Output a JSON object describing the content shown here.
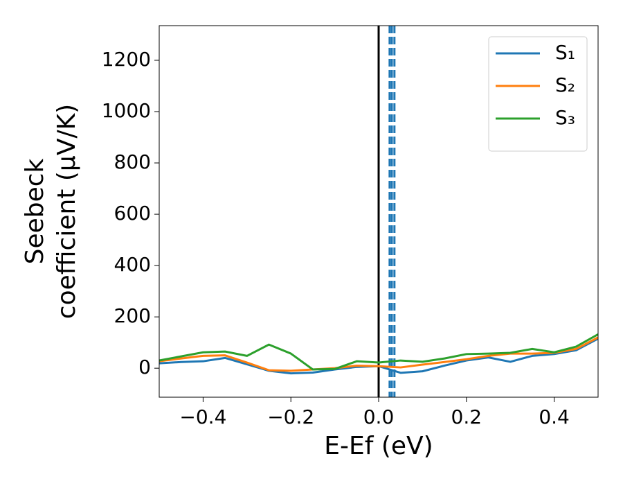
{
  "chart_data": {
    "type": "line",
    "xlabel": "E-Ef (eV)",
    "ylabel": [
      "Seebeck",
      "coefficient  (μV/K)"
    ],
    "x": [
      -0.5,
      -0.45,
      -0.4,
      -0.35,
      -0.3,
      -0.25,
      -0.2,
      -0.15,
      -0.1,
      -0.05,
      0,
      0.05,
      0.1,
      0.15,
      0.2,
      0.25,
      0.3,
      0.35,
      0.4,
      0.45,
      0.5
    ],
    "series": [
      {
        "name": "S₁",
        "color": "#1f77b4",
        "values": [
          19,
          24,
          27,
          40,
          15,
          -10,
          -20,
          -17,
          -5,
          5,
          8,
          -18,
          -12,
          10,
          30,
          42,
          25,
          48,
          55,
          70,
          115
        ]
      },
      {
        "name": "S₂",
        "color": "#ff7f0e",
        "values": [
          27,
          38,
          48,
          50,
          22,
          -8,
          -10,
          -5,
          0,
          10,
          8,
          3,
          14,
          24,
          35,
          48,
          57,
          57,
          60,
          75,
          120
        ]
      },
      {
        "name": "S₃",
        "color": "#2ca02c",
        "values": [
          30,
          46,
          62,
          65,
          48,
          92,
          57,
          -5,
          -3,
          27,
          22,
          30,
          25,
          38,
          55,
          57,
          60,
          75,
          62,
          84,
          132
        ]
      }
    ],
    "vlines": [
      {
        "x": 0,
        "color": "#000000",
        "style": "solid"
      },
      {
        "x": 0.025,
        "color": "#1f77b4",
        "style": "dashed"
      },
      {
        "x": 0.03,
        "color": "#1f77b4",
        "style": "dashed"
      },
      {
        "x": 0.036,
        "color": "#1f77b4",
        "style": "dashed"
      }
    ],
    "xlim": [
      -0.5,
      0.5
    ],
    "ylim": [
      -113,
      1335
    ],
    "xticks": [
      {
        "value": -0.4,
        "label": "−0.4"
      },
      {
        "value": -0.2,
        "label": "−0.2"
      },
      {
        "value": 0,
        "label": "0.0"
      },
      0.2,
      0.4
    ],
    "yticks": [
      0,
      200,
      400,
      600,
      800,
      1000,
      1200
    ],
    "legend": "upper right"
  }
}
